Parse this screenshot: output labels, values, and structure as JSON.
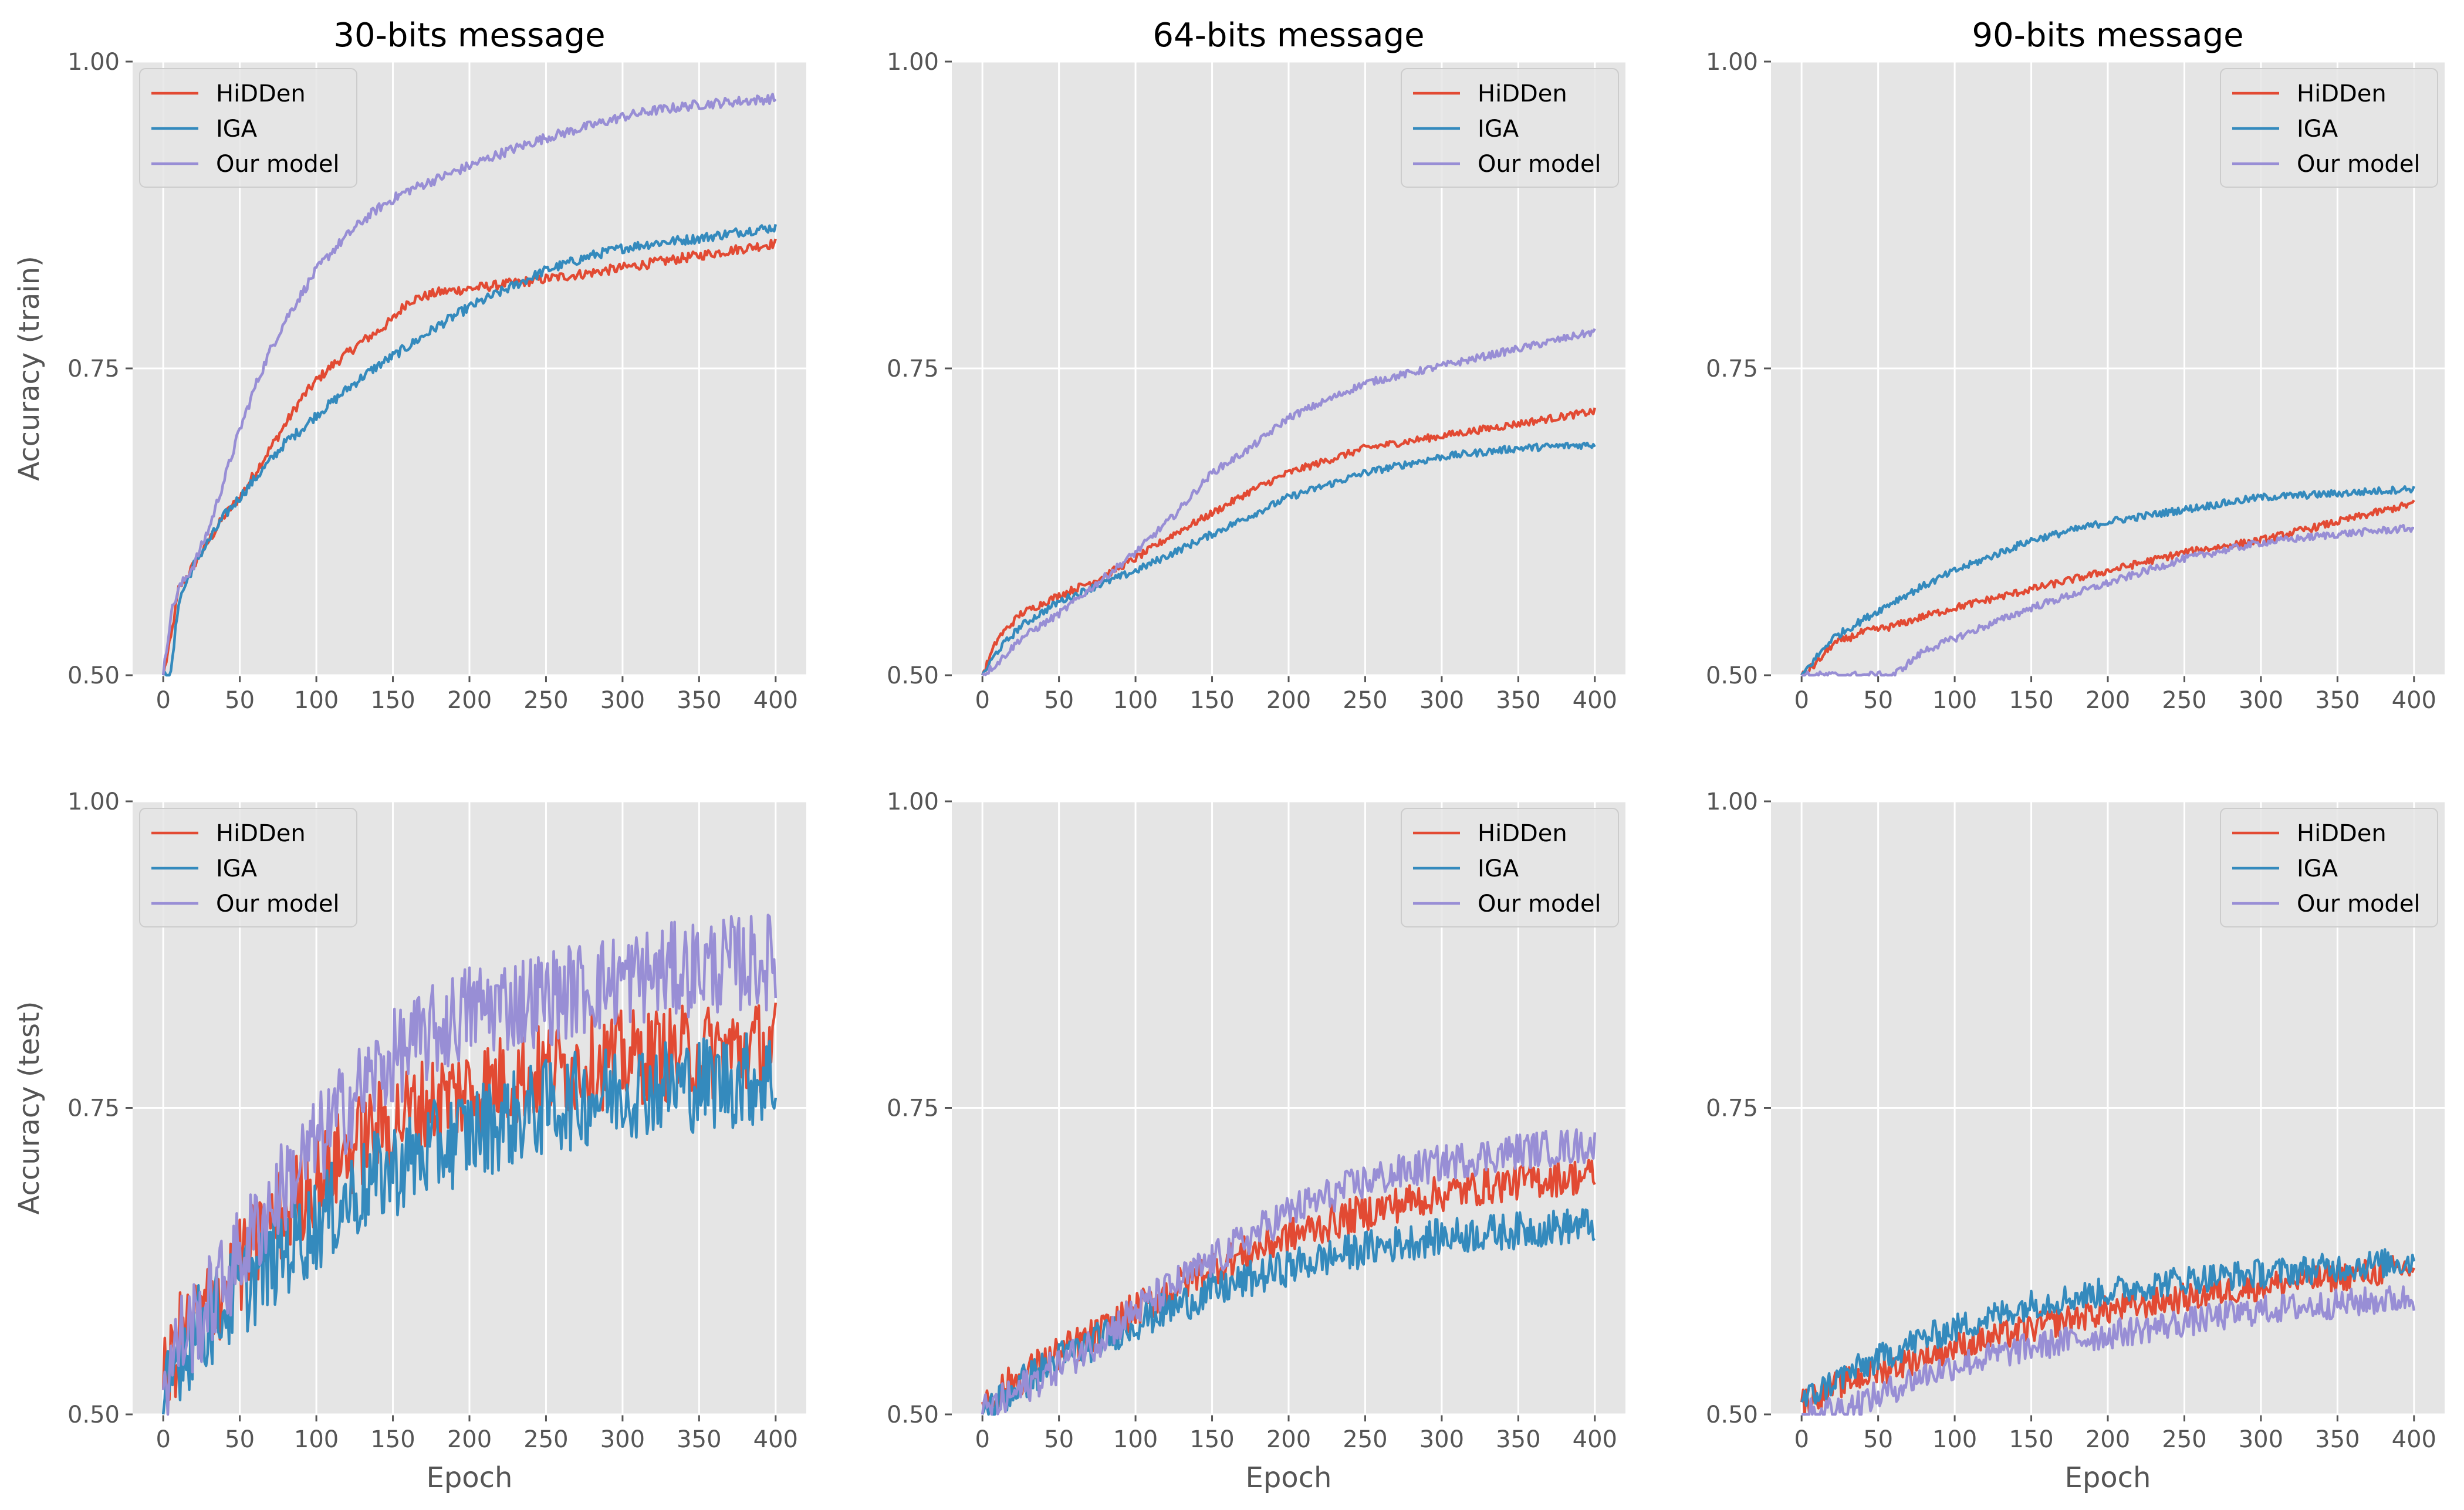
{
  "colors": {
    "panel_bg": "#e5e5e5",
    "grid": "#ffffff",
    "HiDDen": "#e24a33",
    "IGA": "#348abd",
    "Our model": "#988ed5"
  },
  "chart_data": [
    {
      "type": "line",
      "title": "30-bits message",
      "ylabel": "Accuracy (train)",
      "xlabel": "",
      "x_ticks": [
        "0",
        "50",
        "100",
        "150",
        "200",
        "250",
        "300",
        "350",
        "400"
      ],
      "y_ticks": [
        "0.50",
        "0.75",
        "1.00"
      ],
      "xlim": [
        -20,
        420
      ],
      "ylim": [
        0.5,
        1.0
      ],
      "grid": true,
      "legend": "upper-left",
      "noise": 0.004,
      "series": [
        {
          "name": "HiDDen",
          "color": "#e24a33",
          "x": [
            0,
            5,
            10,
            20,
            30,
            40,
            50,
            60,
            70,
            80,
            90,
            100,
            110,
            120,
            130,
            140,
            150,
            160,
            180,
            200,
            220,
            250,
            280,
            300,
            320,
            350,
            380,
            400
          ],
          "y": [
            0.5,
            0.53,
            0.57,
            0.59,
            0.61,
            0.63,
            0.645,
            0.665,
            0.685,
            0.705,
            0.725,
            0.74,
            0.752,
            0.762,
            0.772,
            0.78,
            0.79,
            0.805,
            0.812,
            0.815,
            0.818,
            0.823,
            0.828,
            0.832,
            0.836,
            0.842,
            0.848,
            0.852
          ]
        },
        {
          "name": "IGA",
          "color": "#348abd",
          "x": [
            0,
            5,
            10,
            20,
            30,
            40,
            50,
            60,
            70,
            80,
            90,
            100,
            110,
            120,
            130,
            140,
            150,
            160,
            180,
            200,
            220,
            250,
            280,
            300,
            320,
            350,
            380,
            400
          ],
          "y": [
            0.5,
            0.5,
            0.56,
            0.59,
            0.61,
            0.63,
            0.645,
            0.66,
            0.675,
            0.69,
            0.7,
            0.712,
            0.722,
            0.733,
            0.743,
            0.752,
            0.76,
            0.768,
            0.785,
            0.8,
            0.812,
            0.83,
            0.842,
            0.848,
            0.852,
            0.856,
            0.862,
            0.865
          ]
        },
        {
          "name": "Our model",
          "color": "#988ed5",
          "x": [
            0,
            5,
            10,
            20,
            30,
            40,
            50,
            60,
            70,
            80,
            90,
            100,
            110,
            120,
            130,
            140,
            150,
            160,
            180,
            200,
            220,
            250,
            280,
            300,
            320,
            350,
            380,
            400
          ],
          "y": [
            0.5,
            0.55,
            0.57,
            0.59,
            0.62,
            0.66,
            0.7,
            0.735,
            0.765,
            0.79,
            0.81,
            0.83,
            0.845,
            0.858,
            0.87,
            0.88,
            0.888,
            0.895,
            0.905,
            0.915,
            0.925,
            0.938,
            0.948,
            0.955,
            0.96,
            0.965,
            0.968,
            0.97
          ]
        }
      ]
    },
    {
      "type": "line",
      "title": "64-bits message",
      "ylabel": "",
      "xlabel": "",
      "x_ticks": [
        "0",
        "50",
        "100",
        "150",
        "200",
        "250",
        "300",
        "350",
        "400"
      ],
      "y_ticks": [
        "0.50",
        "0.75",
        "1.00"
      ],
      "xlim": [
        -20,
        420
      ],
      "ylim": [
        0.5,
        1.0
      ],
      "grid": true,
      "legend": "upper-right",
      "noise": 0.003,
      "series": [
        {
          "name": "HiDDen",
          "color": "#e24a33",
          "x": [
            0,
            10,
            25,
            50,
            75,
            100,
            125,
            150,
            175,
            200,
            250,
            300,
            350,
            400
          ],
          "y": [
            0.5,
            0.53,
            0.55,
            0.565,
            0.578,
            0.595,
            0.615,
            0.632,
            0.65,
            0.665,
            0.685,
            0.695,
            0.705,
            0.715
          ]
        },
        {
          "name": "IGA",
          "color": "#348abd",
          "x": [
            0,
            10,
            25,
            50,
            75,
            100,
            125,
            150,
            175,
            200,
            250,
            300,
            350,
            400
          ],
          "y": [
            0.5,
            0.52,
            0.54,
            0.56,
            0.573,
            0.585,
            0.6,
            0.615,
            0.63,
            0.645,
            0.665,
            0.678,
            0.685,
            0.688
          ]
        },
        {
          "name": "Our model",
          "color": "#988ed5",
          "x": [
            0,
            10,
            25,
            50,
            75,
            100,
            125,
            150,
            175,
            200,
            250,
            300,
            350,
            400
          ],
          "y": [
            0.5,
            0.51,
            0.53,
            0.55,
            0.575,
            0.6,
            0.63,
            0.665,
            0.685,
            0.71,
            0.738,
            0.752,
            0.766,
            0.78
          ]
        }
      ]
    },
    {
      "type": "line",
      "title": "90-bits message",
      "ylabel": "",
      "xlabel": "",
      "x_ticks": [
        "0",
        "50",
        "100",
        "150",
        "200",
        "250",
        "300",
        "350",
        "400"
      ],
      "y_ticks": [
        "0.50",
        "0.75",
        "1.00"
      ],
      "xlim": [
        -20,
        420
      ],
      "ylim": [
        0.5,
        1.0
      ],
      "grid": true,
      "legend": "upper-right",
      "noise": 0.003,
      "series": [
        {
          "name": "HiDDen",
          "color": "#e24a33",
          "x": [
            0,
            10,
            20,
            40,
            60,
            80,
            100,
            150,
            200,
            250,
            300,
            350,
            400
          ],
          "y": [
            0.5,
            0.51,
            0.525,
            0.535,
            0.54,
            0.548,
            0.555,
            0.57,
            0.585,
            0.6,
            0.61,
            0.625,
            0.64
          ]
        },
        {
          "name": "IGA",
          "color": "#348abd",
          "x": [
            0,
            10,
            20,
            40,
            60,
            80,
            100,
            150,
            200,
            250,
            300,
            350,
            400
          ],
          "y": [
            0.5,
            0.515,
            0.53,
            0.545,
            0.56,
            0.573,
            0.585,
            0.61,
            0.625,
            0.635,
            0.645,
            0.648,
            0.652
          ]
        },
        {
          "name": "Our model",
          "color": "#988ed5",
          "x": [
            0,
            10,
            20,
            40,
            60,
            70,
            80,
            100,
            130,
            150,
            200,
            250,
            300,
            350,
            400
          ],
          "y": [
            0.5,
            0.5,
            0.5,
            0.5,
            0.5,
            0.51,
            0.52,
            0.53,
            0.545,
            0.555,
            0.575,
            0.595,
            0.608,
            0.615,
            0.62
          ]
        }
      ]
    },
    {
      "type": "line",
      "title": "",
      "ylabel": "Accuracy (test)",
      "xlabel": "Epoch",
      "x_ticks": [
        "0",
        "50",
        "100",
        "150",
        "200",
        "250",
        "300",
        "350",
        "400"
      ],
      "y_ticks": [
        "0.50",
        "0.75",
        "1.00"
      ],
      "xlim": [
        -20,
        420
      ],
      "ylim": [
        0.5,
        1.0
      ],
      "grid": true,
      "legend": "upper-left",
      "noise": 0.04,
      "series": [
        {
          "name": "HiDDen",
          "color": "#e24a33",
          "x": [
            0,
            10,
            25,
            50,
            75,
            100,
            125,
            150,
            175,
            200,
            250,
            300,
            350,
            400
          ],
          "y": [
            0.52,
            0.56,
            0.58,
            0.62,
            0.66,
            0.69,
            0.72,
            0.74,
            0.755,
            0.765,
            0.78,
            0.79,
            0.795,
            0.8
          ]
        },
        {
          "name": "IGA",
          "color": "#348abd",
          "x": [
            0,
            10,
            25,
            50,
            75,
            100,
            125,
            150,
            175,
            200,
            250,
            300,
            350,
            400
          ],
          "y": [
            0.5,
            0.55,
            0.57,
            0.6,
            0.63,
            0.655,
            0.68,
            0.7,
            0.715,
            0.73,
            0.75,
            0.765,
            0.77,
            0.775
          ]
        },
        {
          "name": "Our model",
          "color": "#988ed5",
          "x": [
            0,
            10,
            25,
            50,
            75,
            100,
            125,
            150,
            175,
            200,
            250,
            300,
            350,
            400
          ],
          "y": [
            0.52,
            0.56,
            0.58,
            0.63,
            0.68,
            0.72,
            0.76,
            0.79,
            0.81,
            0.83,
            0.84,
            0.855,
            0.865,
            0.87
          ]
        }
      ]
    },
    {
      "type": "line",
      "title": "",
      "ylabel": "",
      "xlabel": "Epoch",
      "x_ticks": [
        "0",
        "50",
        "100",
        "150",
        "200",
        "250",
        "300",
        "350",
        "400"
      ],
      "y_ticks": [
        "0.50",
        "0.75",
        "1.00"
      ],
      "xlim": [
        -20,
        420
      ],
      "ylim": [
        0.5,
        1.0
      ],
      "grid": true,
      "legend": "upper-right",
      "noise": 0.015,
      "series": [
        {
          "name": "HiDDen",
          "color": "#e24a33",
          "x": [
            0,
            25,
            50,
            75,
            100,
            150,
            200,
            250,
            300,
            350,
            400
          ],
          "y": [
            0.51,
            0.53,
            0.55,
            0.565,
            0.585,
            0.62,
            0.645,
            0.665,
            0.68,
            0.69,
            0.695
          ]
        },
        {
          "name": "IGA",
          "color": "#348abd",
          "x": [
            0,
            25,
            50,
            75,
            100,
            150,
            200,
            250,
            300,
            350,
            400
          ],
          "y": [
            0.5,
            0.525,
            0.545,
            0.56,
            0.575,
            0.6,
            0.62,
            0.635,
            0.645,
            0.65,
            0.655
          ]
        },
        {
          "name": "Our model",
          "color": "#988ed5",
          "x": [
            0,
            25,
            50,
            75,
            100,
            150,
            200,
            250,
            300,
            350,
            400
          ],
          "y": [
            0.5,
            0.52,
            0.54,
            0.56,
            0.585,
            0.625,
            0.665,
            0.69,
            0.705,
            0.715,
            0.72
          ]
        }
      ]
    },
    {
      "type": "line",
      "title": "",
      "ylabel": "",
      "xlabel": "Epoch",
      "x_ticks": [
        "0",
        "50",
        "100",
        "150",
        "200",
        "250",
        "300",
        "350",
        "400"
      ],
      "y_ticks": [
        "0.50",
        "0.75",
        "1.00"
      ],
      "xlim": [
        -20,
        420
      ],
      "ylim": [
        0.5,
        1.0
      ],
      "grid": true,
      "legend": "upper-right",
      "noise": 0.012,
      "series": [
        {
          "name": "HiDDen",
          "color": "#e24a33",
          "x": [
            0,
            25,
            50,
            75,
            100,
            150,
            200,
            250,
            300,
            350,
            400
          ],
          "y": [
            0.51,
            0.525,
            0.535,
            0.545,
            0.555,
            0.57,
            0.585,
            0.595,
            0.605,
            0.612,
            0.62
          ]
        },
        {
          "name": "IGA",
          "color": "#348abd",
          "x": [
            0,
            25,
            50,
            75,
            100,
            150,
            200,
            250,
            300,
            350,
            400
          ],
          "y": [
            0.51,
            0.53,
            0.545,
            0.56,
            0.57,
            0.59,
            0.6,
            0.61,
            0.615,
            0.62,
            0.625
          ]
        },
        {
          "name": "Our model",
          "color": "#988ed5",
          "x": [
            0,
            25,
            50,
            75,
            100,
            150,
            200,
            250,
            300,
            350,
            400
          ],
          "y": [
            0.5,
            0.505,
            0.515,
            0.53,
            0.54,
            0.555,
            0.565,
            0.575,
            0.585,
            0.59,
            0.595
          ]
        }
      ]
    }
  ]
}
